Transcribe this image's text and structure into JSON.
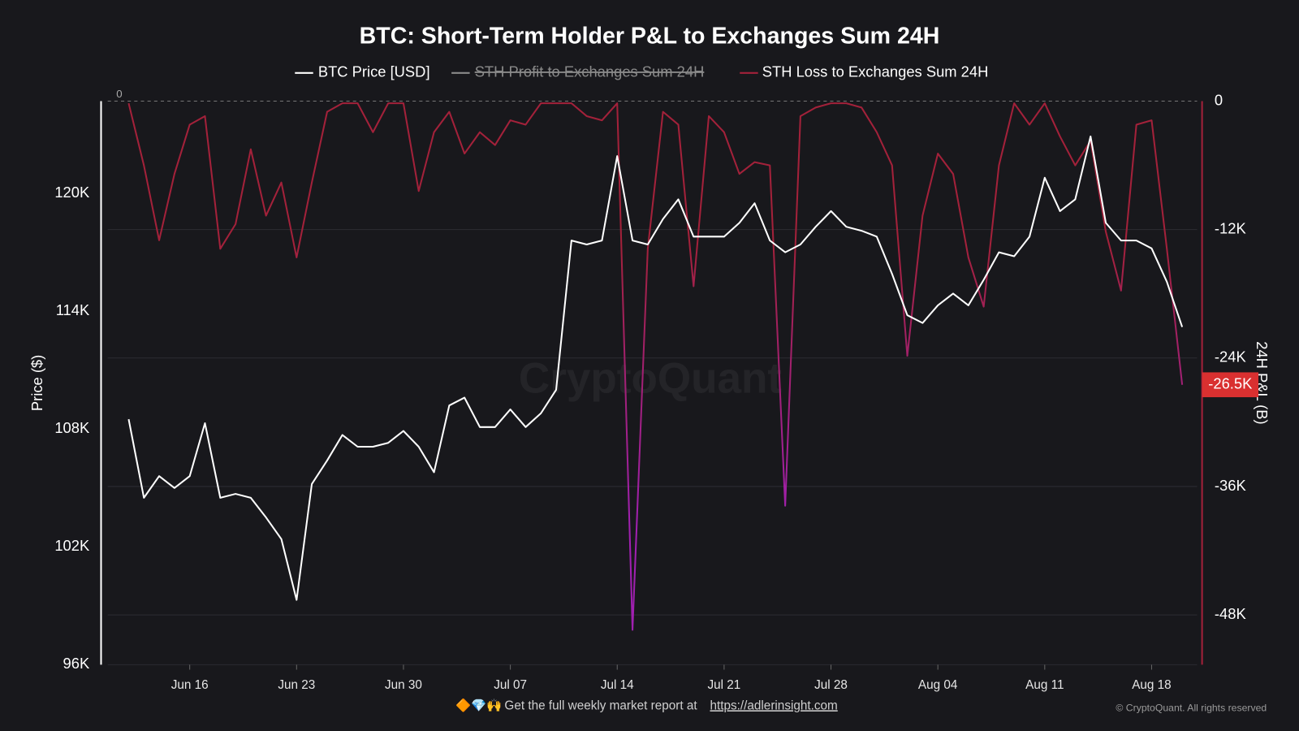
{
  "chart_data": {
    "type": "line",
    "title": "BTC: Short-Term Holder P&L to Exchanges Sum 24H",
    "y_label": "Price ($)",
    "y2_label": "24H P&L (B)",
    "watermark": "CryptoQuant",
    "categories": [
      null,
      null,
      null,
      null,
      "Jun 16",
      null,
      null,
      null,
      null,
      null,
      null,
      "Jun 23",
      null,
      null,
      null,
      null,
      null,
      null,
      "Jun 30",
      null,
      null,
      null,
      null,
      null,
      null,
      "Jul 07",
      null,
      null,
      null,
      null,
      null,
      null,
      "Jul 14",
      null,
      null,
      null,
      null,
      null,
      null,
      "Jul 21",
      null,
      null,
      null,
      null,
      null,
      null,
      "Jul 28",
      null,
      null,
      null,
      null,
      null,
      null,
      "Aug 04",
      null,
      null,
      null,
      null,
      null,
      null,
      "Aug 11",
      null,
      null,
      null,
      null,
      null,
      null,
      "Aug 18",
      null,
      null
    ],
    "ylim": [
      96000,
      124700
    ],
    "yticks": [
      {
        "value": 96000,
        "label": "96K"
      },
      {
        "value": 102000,
        "label": "102K"
      },
      {
        "value": 108000,
        "label": "108K"
      },
      {
        "value": 114000,
        "label": "114K"
      },
      {
        "value": 120000,
        "label": "120K"
      }
    ],
    "y2lim": [
      -52650,
      0
    ],
    "y2ticks": [
      0,
      {
        "value": -12000,
        "label": "-12K"
      },
      {
        "value": -24000,
        "label": "-24K"
      },
      {
        "value": -36000,
        "label": "-36K"
      },
      {
        "value": -48000,
        "label": "-48K"
      }
    ],
    "zero_line_label": 0,
    "last_value": {
      "value": -26500,
      "label": "-26.5K"
    },
    "grid": true,
    "series": [
      {
        "name": "BTC Price [USD]",
        "color": "#ffffff",
        "axis": "y",
        "visible": true,
        "values": [
          108500,
          104500,
          105600,
          105000,
          105600,
          108300,
          104500,
          104700,
          104500,
          103500,
          102400,
          99300,
          105200,
          106400,
          107700,
          107100,
          107100,
          107300,
          107900,
          107100,
          105800,
          109200,
          109600,
          108100,
          108100,
          109000,
          108100,
          108800,
          110000,
          117600,
          117400,
          117600,
          121900,
          117600,
          117400,
          118700,
          119700,
          117800,
          117800,
          117800,
          118500,
          119500,
          117600,
          117000,
          117400,
          118300,
          119100,
          118300,
          118100,
          117800,
          115900,
          113800,
          113400,
          114300,
          114900,
          114300,
          115600,
          117000,
          116800,
          117800,
          120800,
          119100,
          119700,
          122900,
          118500,
          117600,
          117600,
          117200,
          115500,
          113200
        ]
      },
      {
        "name": "STH Profit to Exchanges Sum 24H",
        "color": "#8a8a8a",
        "axis": "y2",
        "visible": false
      },
      {
        "name": "STH Loss to Exchanges Sum 24H",
        "color": "#a3213a",
        "deep_color": "#a020b0",
        "axis": "y2",
        "visible": true,
        "values": [
          -200,
          -6000,
          -13000,
          -6800,
          -2200,
          -1400,
          -13800,
          -11500,
          -4500,
          -10700,
          -7600,
          -14600,
          -7600,
          -1000,
          -200,
          -200,
          -2900,
          -200,
          -200,
          -8400,
          -2900,
          -1000,
          -4900,
          -2900,
          -4100,
          -1800,
          -2200,
          -200,
          -200,
          -200,
          -1400,
          -1800,
          -200,
          -49400,
          -13800,
          -1000,
          -2200,
          -17300,
          -1400,
          -2900,
          -6800,
          -5700,
          -6000,
          -37800,
          -1400,
          -600,
          -200,
          -200,
          -600,
          -2900,
          -6000,
          -23800,
          -10700,
          -4900,
          -6800,
          -14600,
          -19200,
          -6000,
          -200,
          -2200,
          -200,
          -3300,
          -6000,
          -3700,
          -12200,
          -17700,
          -2200,
          -1800,
          -13800,
          -26500
        ]
      }
    ]
  },
  "footer": {
    "icons": "🔶💎🙌",
    "text": "Get the full weekly market report at",
    "link": "https://adlerinsight.com",
    "copyright": "© CryptoQuant. All rights reserved"
  }
}
